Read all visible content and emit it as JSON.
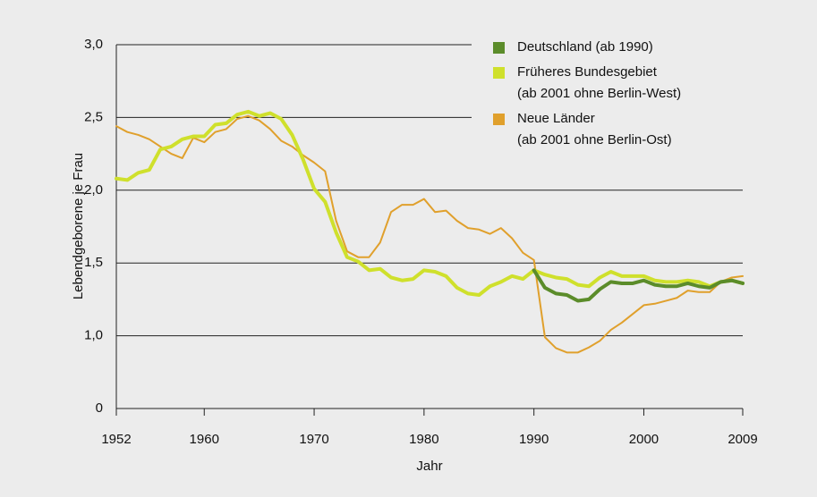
{
  "chart_data": {
    "type": "line",
    "xlabel": "Jahr",
    "ylabel": "Lebendgeborene je Frau",
    "x": [
      1952,
      1953,
      1954,
      1955,
      1956,
      1957,
      1958,
      1959,
      1960,
      1961,
      1962,
      1963,
      1964,
      1965,
      1966,
      1967,
      1968,
      1969,
      1970,
      1971,
      1972,
      1973,
      1974,
      1975,
      1976,
      1977,
      1978,
      1979,
      1980,
      1981,
      1982,
      1983,
      1984,
      1985,
      1986,
      1987,
      1988,
      1989,
      1990,
      1991,
      1992,
      1993,
      1994,
      1995,
      1996,
      1997,
      1998,
      1999,
      2000,
      2001,
      2002,
      2003,
      2004,
      2005,
      2006,
      2007,
      2008,
      2009
    ],
    "series": [
      {
        "name": "Deutschland (ab 1990)",
        "color": "#5b8c2a",
        "width": 4,
        "values": [
          null,
          null,
          null,
          null,
          null,
          null,
          null,
          null,
          null,
          null,
          null,
          null,
          null,
          null,
          null,
          null,
          null,
          null,
          null,
          null,
          null,
          null,
          null,
          null,
          null,
          null,
          null,
          null,
          null,
          null,
          null,
          null,
          null,
          null,
          null,
          null,
          null,
          null,
          1.45,
          1.33,
          1.29,
          1.28,
          1.24,
          1.25,
          1.32,
          1.37,
          1.36,
          1.36,
          1.38,
          1.35,
          1.34,
          1.34,
          1.36,
          1.34,
          1.33,
          1.37,
          1.38,
          1.36
        ]
      },
      {
        "name": "Früheres Bundesgebiet\n(ab 2001 ohne Berlin-West)",
        "color": "#cfe02c",
        "width": 4,
        "values": [
          2.08,
          2.07,
          2.12,
          2.14,
          2.28,
          2.3,
          2.35,
          2.37,
          2.37,
          2.45,
          2.46,
          2.52,
          2.54,
          2.51,
          2.53,
          2.49,
          2.38,
          2.21,
          2.01,
          1.92,
          1.71,
          1.54,
          1.51,
          1.45,
          1.46,
          1.4,
          1.38,
          1.39,
          1.45,
          1.44,
          1.41,
          1.33,
          1.29,
          1.28,
          1.34,
          1.37,
          1.41,
          1.39,
          1.45,
          1.42,
          1.4,
          1.39,
          1.35,
          1.34,
          1.4,
          1.44,
          1.41,
          1.41,
          1.41,
          1.38,
          1.37,
          1.37,
          1.38,
          1.37,
          1.34,
          1.37,
          1.38,
          1.36
        ]
      },
      {
        "name": "Neue Länder\n(ab 2001 ohne Berlin-Ost)",
        "color": "#e0a02c",
        "width": 2,
        "values": [
          2.44,
          2.4,
          2.38,
          2.35,
          2.3,
          2.25,
          2.22,
          2.36,
          2.33,
          2.4,
          2.42,
          2.49,
          2.51,
          2.48,
          2.42,
          2.34,
          2.3,
          2.24,
          2.19,
          2.13,
          1.79,
          1.58,
          1.54,
          1.54,
          1.64,
          1.85,
          1.9,
          1.9,
          1.94,
          1.85,
          1.86,
          1.79,
          1.74,
          1.73,
          1.7,
          1.74,
          1.67,
          1.57,
          1.52,
          0.98,
          0.83,
          0.77,
          0.77,
          0.84,
          0.93,
          1.04,
          1.09,
          1.15,
          1.21,
          1.22,
          1.24,
          1.26,
          1.31,
          1.3,
          1.3,
          1.37,
          1.4,
          1.41
        ]
      }
    ],
    "xlim": [
      1952,
      2009
    ],
    "xticks": [
      1952,
      1960,
      1970,
      1980,
      1990,
      2000,
      2009
    ],
    "ylim": [
      0,
      3
    ],
    "yticks": [
      0,
      {
        "value": 1,
        "label": "1,0"
      },
      {
        "value": 1.5,
        "label": "1,5"
      },
      {
        "value": 2,
        "label": "2,0"
      },
      {
        "value": 2.5,
        "label": "2,5"
      },
      {
        "value": 3,
        "label": "3,0"
      }
    ],
    "grid": true,
    "legend": "upper right"
  }
}
